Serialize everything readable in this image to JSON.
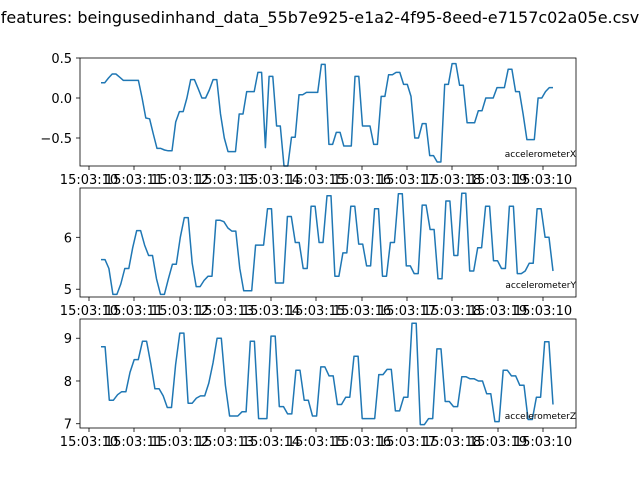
{
  "chart_data": {
    "type": "line",
    "title": "features: beingusedinhand_data_55b7e925-e1a2-4f95-8eed-e7157c02a05e.csv",
    "x_tick_labels": [
      "15:03:10",
      "15:03:11",
      "15:03:12",
      "15:03:13",
      "15:03:14",
      "15:03:15",
      "15:03:16",
      "15:03:17",
      "15:03:18",
      "15:03:19",
      "15:03:10"
    ],
    "line_color": "#1f77b4",
    "panels": [
      {
        "name": "accelerometerX",
        "legend": "accelerometerX",
        "ylim": [
          -0.85,
          0.5
        ],
        "yticks": [
          0.5,
          0.0,
          -0.5
        ],
        "ytick_labels": [
          "0.5",
          "0.0",
          "−0.5"
        ],
        "values": [
          0.19,
          0.19,
          0.25,
          0.3,
          0.3,
          0.26,
          0.22,
          0.22,
          0.22,
          0.22,
          0.22,
          0.0,
          -0.25,
          -0.26,
          -0.45,
          -0.63,
          -0.63,
          -0.65,
          -0.66,
          -0.66,
          -0.3,
          -0.17,
          -0.17,
          0.0,
          0.23,
          0.23,
          0.12,
          0.0,
          0.0,
          0.1,
          0.23,
          0.23,
          -0.2,
          -0.5,
          -0.67,
          -0.67,
          -0.67,
          -0.2,
          -0.2,
          0.08,
          0.08,
          0.08,
          0.32,
          0.32,
          -0.62,
          0.27,
          0.27,
          -0.35,
          -0.35,
          -0.85,
          -0.85,
          -0.49,
          -0.49,
          0.04,
          0.04,
          0.07,
          0.07,
          0.07,
          0.07,
          0.42,
          0.42,
          -0.58,
          -0.58,
          -0.43,
          -0.43,
          -0.6,
          -0.6,
          -0.6,
          0.27,
          0.27,
          -0.35,
          -0.35,
          -0.35,
          -0.58,
          -0.58,
          0.02,
          0.02,
          0.29,
          0.29,
          0.32,
          0.32,
          0.17,
          0.17,
          0.02,
          -0.5,
          -0.5,
          -0.32,
          -0.32,
          -0.72,
          -0.72,
          -0.8,
          -0.8,
          0.17,
          0.17,
          0.43,
          0.43,
          0.16,
          0.16,
          -0.31,
          -0.31,
          -0.31,
          -0.16,
          -0.16,
          0.0,
          0.0,
          0.0,
          0.13,
          0.13,
          0.13,
          0.36,
          0.36,
          0.08,
          0.08,
          -0.2,
          -0.52,
          -0.52,
          -0.52,
          0.0,
          0.0,
          0.08,
          0.13,
          0.13
        ]
      },
      {
        "name": "accelerometerY",
        "legend": "accelerometerY",
        "ylim": [
          4.85,
          6.95
        ],
        "yticks": [
          6,
          5
        ],
        "ytick_labels": [
          "6",
          "5"
        ],
        "values": [
          5.57,
          5.57,
          5.4,
          4.9,
          4.9,
          5.1,
          5.4,
          5.4,
          5.8,
          6.13,
          6.13,
          5.85,
          5.65,
          5.65,
          5.2,
          4.9,
          4.9,
          5.2,
          5.48,
          5.48,
          6.0,
          6.38,
          6.38,
          5.5,
          5.05,
          5.05,
          5.17,
          5.25,
          5.25,
          6.33,
          6.33,
          6.3,
          6.18,
          6.12,
          6.12,
          5.4,
          4.97,
          4.97,
          4.97,
          5.85,
          5.85,
          5.85,
          6.55,
          6.55,
          5.12,
          5.12,
          5.12,
          6.4,
          6.4,
          5.9,
          5.9,
          5.4,
          5.4,
          6.6,
          6.6,
          5.9,
          5.9,
          6.8,
          6.8,
          5.25,
          5.25,
          5.7,
          5.7,
          6.6,
          6.6,
          5.87,
          5.87,
          5.45,
          5.45,
          6.55,
          6.55,
          5.25,
          5.25,
          5.9,
          5.9,
          6.84,
          6.84,
          5.45,
          5.45,
          5.3,
          5.3,
          6.62,
          6.62,
          6.15,
          6.15,
          5.2,
          5.2,
          6.7,
          6.7,
          5.65,
          5.65,
          6.85,
          6.85,
          5.35,
          5.35,
          5.8,
          5.8,
          6.6,
          6.6,
          5.55,
          5.55,
          5.4,
          5.4,
          6.6,
          6.6,
          5.3,
          5.3,
          5.35,
          5.5,
          5.5,
          6.55,
          6.55,
          6.0,
          6.0,
          5.35
        ]
      },
      {
        "name": "accelerometerZ",
        "legend": "accelerometerZ",
        "ylim": [
          6.9,
          9.45
        ],
        "yticks": [
          9,
          8,
          7
        ],
        "ytick_labels": [
          "9",
          "8",
          "7"
        ],
        "values": [
          8.8,
          8.8,
          7.55,
          7.55,
          7.68,
          7.75,
          7.75,
          8.2,
          8.5,
          8.5,
          8.93,
          8.93,
          8.4,
          7.82,
          7.82,
          7.65,
          7.38,
          7.38,
          8.38,
          9.12,
          9.12,
          7.48,
          7.48,
          7.6,
          7.65,
          7.65,
          7.95,
          8.42,
          9.0,
          9.0,
          7.9,
          7.18,
          7.18,
          7.18,
          7.28,
          7.28,
          8.93,
          8.93,
          7.12,
          7.12,
          7.12,
          9.05,
          9.05,
          7.4,
          7.4,
          7.23,
          7.23,
          8.25,
          8.25,
          7.55,
          7.55,
          7.18,
          7.18,
          8.33,
          8.33,
          8.12,
          8.12,
          7.45,
          7.45,
          7.62,
          7.62,
          8.58,
          8.58,
          7.12,
          7.12,
          7.12,
          7.12,
          8.15,
          8.15,
          8.27,
          8.27,
          7.3,
          7.3,
          7.62,
          7.62,
          9.35,
          9.35,
          6.98,
          6.98,
          7.12,
          7.12,
          8.75,
          8.75,
          7.52,
          7.52,
          7.4,
          7.4,
          8.1,
          8.1,
          8.05,
          8.05,
          8.0,
          8.0,
          7.7,
          7.7,
          7.05,
          7.05,
          8.25,
          8.25,
          8.12,
          8.12,
          7.9,
          7.9,
          7.1,
          7.1,
          7.62,
          7.62,
          8.92,
          8.92,
          7.45
        ]
      }
    ]
  }
}
